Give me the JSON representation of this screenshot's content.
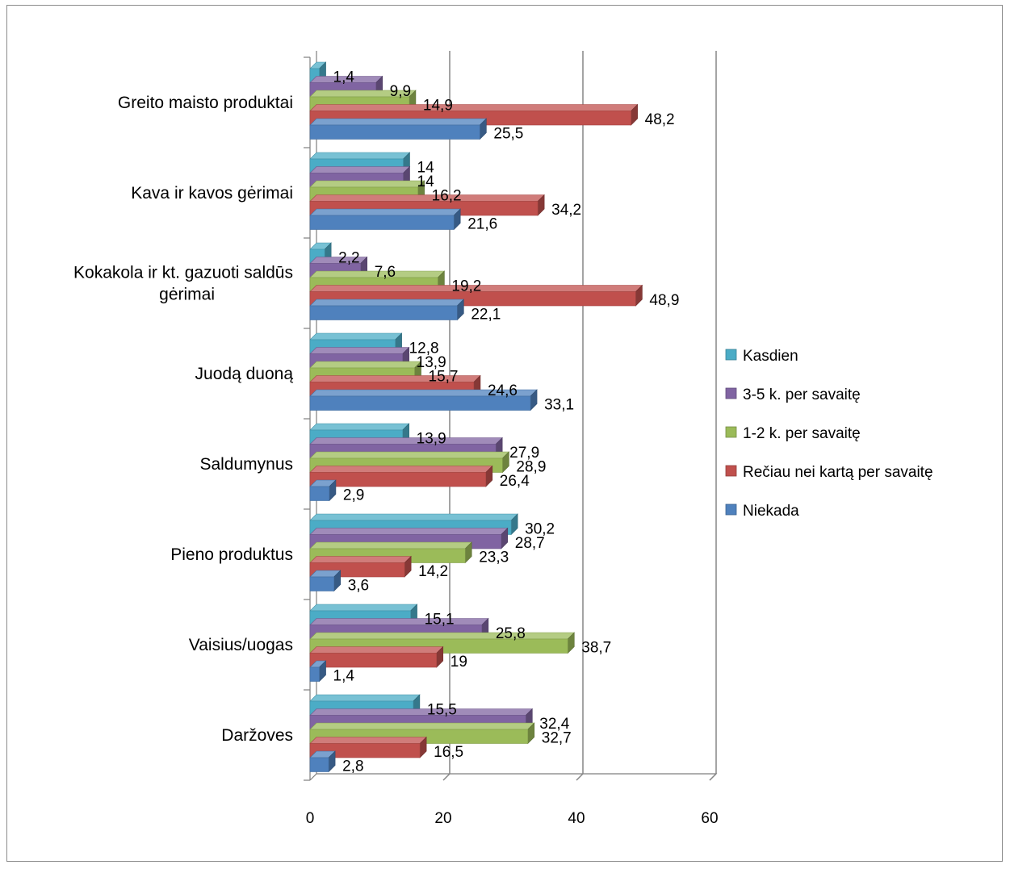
{
  "chart_data": {
    "type": "bar",
    "orientation": "horizontal",
    "style": "3d-clustered",
    "categories": [
      "Greito maisto produktai",
      "Kava ir kavos gėrimai",
      "Kokakola ir kt. gazuoti saldūs gėrimai",
      "Juodą duoną",
      "Saldumynus",
      "Pieno produktus",
      "Vaisius/uogas",
      "Daržoves"
    ],
    "category_label_lines": [
      [
        "Greito maisto produktai"
      ],
      [
        "Kava ir kavos gėrimai"
      ],
      [
        "Kokakola ir kt. gazuoti saldūs",
        "gėrimai"
      ],
      [
        "Juodą duoną"
      ],
      [
        "Saldumynus"
      ],
      [
        "Pieno produktus"
      ],
      [
        "Vaisius/uogas"
      ],
      [
        "Daržoves"
      ]
    ],
    "series": [
      {
        "name": "Kasdien",
        "color": "#4bacc6",
        "values": [
          1.4,
          14,
          2.2,
          12.8,
          13.9,
          30.2,
          15.1,
          15.5
        ],
        "labels": [
          "1,4",
          "14",
          "2,2",
          "12,8",
          "13,9",
          "30,2",
          "15,1",
          "15,5"
        ]
      },
      {
        "name": "3-5 k. per savaitę",
        "color": "#8064a2",
        "values": [
          9.9,
          14,
          7.6,
          13.9,
          27.9,
          28.7,
          25.8,
          32.4
        ],
        "labels": [
          "9,9",
          "14",
          "7,6",
          "13,9",
          "27,9",
          "28,7",
          "25,8",
          "32,4"
        ]
      },
      {
        "name": "1-2 k. per savaitę",
        "color": "#9bbb59",
        "values": [
          14.9,
          16.2,
          19.2,
          15.7,
          28.9,
          23.3,
          38.7,
          32.7
        ],
        "labels": [
          "14,9",
          "16,2",
          "19,2",
          "15,7",
          "28,9",
          "23,3",
          "38,7",
          "32,7"
        ]
      },
      {
        "name": "Rečiau nei kartą per savaitę",
        "color": "#c0504d",
        "values": [
          48.2,
          34.2,
          48.9,
          24.6,
          26.4,
          14.2,
          19,
          16.5
        ],
        "labels": [
          "48,2",
          "34,2",
          "48,9",
          "24,6",
          "26,4",
          "14,2",
          "19",
          "16,5"
        ]
      },
      {
        "name": "Niekada",
        "color": "#4f81bd",
        "values": [
          25.5,
          21.6,
          22.1,
          33.1,
          2.9,
          3.6,
          1.4,
          2.8
        ],
        "labels": [
          "25,5",
          "21,6",
          "22,1",
          "33,1",
          "2,9",
          "3,6",
          "1,4",
          "2,8"
        ]
      }
    ],
    "xlim": [
      0,
      60
    ],
    "xticks": [
      0,
      20,
      40,
      60
    ],
    "grid": true,
    "legend_position": "right"
  }
}
